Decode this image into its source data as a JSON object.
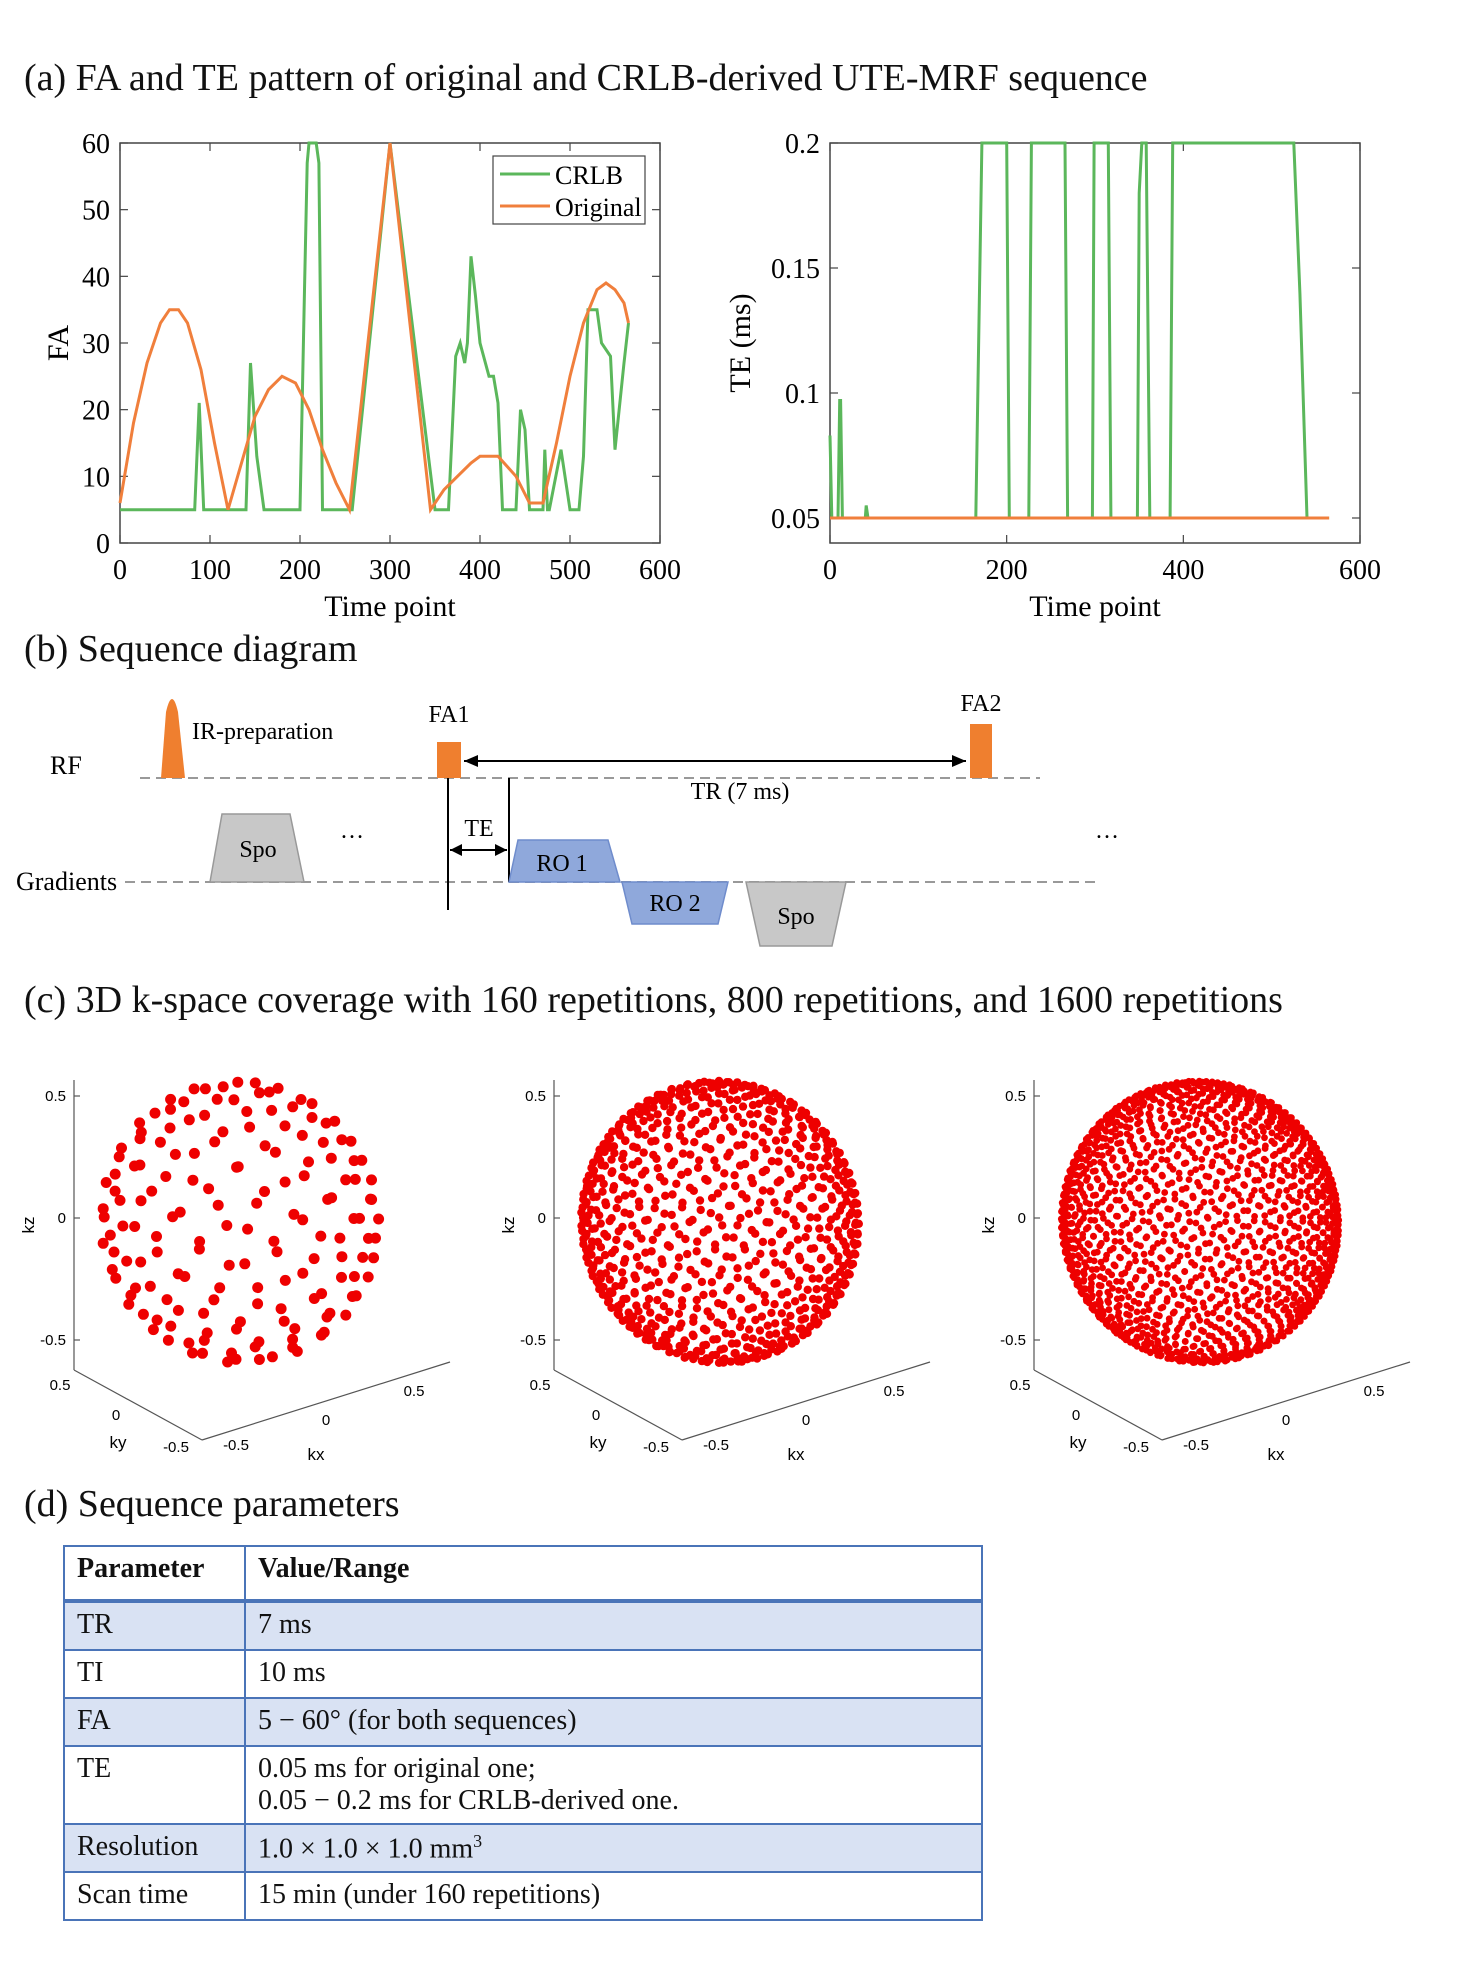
{
  "sections": {
    "a": "(a) FA and TE pattern of original and CRLB-derived UTE-MRF sequence",
    "b": "(b) Sequence diagram",
    "c": "(c) 3D k-space coverage with 160 repetitions, 800 repetitions, and 1600 repetitions",
    "d": "(d) Sequence parameters"
  },
  "colors": {
    "crlb": "#5bb75b",
    "original": "#f07f3c",
    "rf": "#ef7f2f",
    "ro": "#8fa8db",
    "spo": "#c8c8c8",
    "dots": "#ee0000",
    "table_border": "#4a74b8",
    "table_shade": "#d9e2f3"
  },
  "chart_data": [
    {
      "type": "line",
      "id": "fa_plot",
      "xlabel": "Time point",
      "ylabel": "FA",
      "xlim": [
        0,
        600
      ],
      "ylim": [
        0,
        60
      ],
      "xticks": [
        "0",
        "100",
        "200",
        "300",
        "400",
        "500",
        "600"
      ],
      "yticks": [
        "0",
        "10",
        "20",
        "30",
        "40",
        "50",
        "60"
      ],
      "legend": {
        "position": "top-right",
        "entries": [
          "CRLB",
          "Original"
        ]
      },
      "series": [
        {
          "name": "CRLB",
          "x": [
            0,
            83,
            88,
            93,
            140,
            145,
            152,
            160,
            200,
            205,
            208,
            210,
            218,
            221,
            225,
            240,
            258,
            300,
            350,
            365,
            373,
            378,
            383,
            386,
            390,
            395,
            400,
            410,
            415,
            420,
            425,
            440,
            445,
            450,
            455,
            470,
            472,
            475,
            477,
            490,
            500,
            510,
            515,
            520,
            530,
            535,
            545,
            550,
            560,
            565
          ],
          "y": [
            5,
            5,
            21,
            5,
            5,
            27,
            13,
            5,
            5,
            38,
            57,
            60,
            60,
            57,
            5,
            5,
            5,
            60,
            5,
            5,
            28,
            30,
            27,
            30,
            43,
            37,
            30,
            25,
            25,
            21,
            5,
            5,
            20,
            17,
            5,
            5,
            14,
            5,
            5,
            14,
            5,
            5,
            13,
            35,
            35,
            30,
            28,
            14,
            27,
            33
          ]
        },
        {
          "name": "Original",
          "x": [
            0,
            15,
            30,
            45,
            55,
            65,
            75,
            90,
            105,
            120,
            135,
            150,
            165,
            180,
            195,
            210,
            225,
            240,
            255,
            300,
            345,
            360,
            375,
            390,
            400,
            420,
            440,
            455,
            470,
            485,
            500,
            515,
            530,
            540,
            550,
            560,
            565
          ],
          "y": [
            6,
            18,
            27,
            33,
            35,
            35,
            33,
            26,
            15,
            5,
            12,
            19,
            23,
            25,
            24,
            20,
            14,
            9,
            5,
            60,
            5,
            8,
            10,
            12,
            13,
            13,
            10,
            6,
            6,
            15,
            25,
            33,
            38,
            39,
            38,
            36,
            33
          ]
        }
      ]
    },
    {
      "type": "line",
      "id": "te_plot",
      "xlabel": "Time point",
      "ylabel": "TE (ms)",
      "xlim": [
        0,
        600
      ],
      "ylim": [
        0.04,
        0.2
      ],
      "xticks": [
        "0",
        "200",
        "400",
        "600"
      ],
      "yticks": [
        "0.05",
        "0.1",
        "0.15",
        "0.2"
      ],
      "series": [
        {
          "name": "CRLB",
          "x": [
            0,
            2,
            4,
            9,
            11,
            12,
            14,
            40,
            41,
            43,
            165,
            172,
            178,
            200,
            203,
            208,
            225,
            228,
            235,
            266,
            269,
            275,
            280,
            297,
            299,
            302,
            315,
            318,
            322,
            348,
            350,
            353,
            358,
            362,
            366,
            372,
            385,
            388,
            395,
            525,
            532,
            540,
            565
          ],
          "y": [
            0.083,
            0.05,
            0.05,
            0.05,
            0.097,
            0.097,
            0.05,
            0.05,
            0.055,
            0.05,
            0.05,
            0.2,
            0.2,
            0.2,
            0.05,
            0.05,
            0.05,
            0.2,
            0.2,
            0.2,
            0.05,
            0.05,
            0.05,
            0.05,
            0.2,
            0.2,
            0.2,
            0.05,
            0.05,
            0.05,
            0.18,
            0.2,
            0.2,
            0.05,
            0.05,
            0.05,
            0.05,
            0.2,
            0.2,
            0.2,
            0.14,
            0.05,
            0.05
          ]
        },
        {
          "name": "Original",
          "x": [
            0,
            565
          ],
          "y": [
            0.05,
            0.05
          ]
        }
      ]
    },
    {
      "type": "scatter",
      "id": "kspace_160",
      "repetitions": 160,
      "xlabel": "kx",
      "ylabel": "ky",
      "zlabel": "kz",
      "ticks": [
        "0.5",
        "0",
        "-0.5"
      ]
    },
    {
      "type": "scatter",
      "id": "kspace_800",
      "repetitions": 800,
      "xlabel": "kx",
      "ylabel": "ky",
      "zlabel": "kz",
      "ticks": [
        "0.5",
        "0",
        "-0.5"
      ]
    },
    {
      "type": "scatter",
      "id": "kspace_1600",
      "repetitions": 1600,
      "xlabel": "kx",
      "ylabel": "ky",
      "zlabel": "kz",
      "ticks": [
        "0.5",
        "0",
        "-0.5"
      ]
    }
  ],
  "diagram": {
    "rf_label": "RF",
    "gradients_label": "Gradients",
    "ir_prep": "IR-preparation",
    "fa1": "FA1",
    "fa2": "FA2",
    "tr": "TR (7 ms)",
    "te": "TE",
    "ro1": "RO 1",
    "ro2": "RO 2",
    "spo": "Spo",
    "ellipsis": "…"
  },
  "table": {
    "headers": [
      "Parameter",
      "Value/Range"
    ],
    "rows": [
      {
        "param": "TR",
        "value": "7 ms"
      },
      {
        "param": "TI",
        "value": "10 ms"
      },
      {
        "param": "FA",
        "value": "5 − 60° (for both sequences)"
      },
      {
        "param": "TE",
        "value": "0.05 ms for original one;",
        "value2": "0.05 − 0.2 ms for CRLB-derived one."
      },
      {
        "param": "Resolution",
        "value": "1.0 × 1.0 × 1.0 mm",
        "sup": "3"
      },
      {
        "param": "Scan time",
        "value": "15 min (under 160 repetitions)"
      }
    ]
  }
}
